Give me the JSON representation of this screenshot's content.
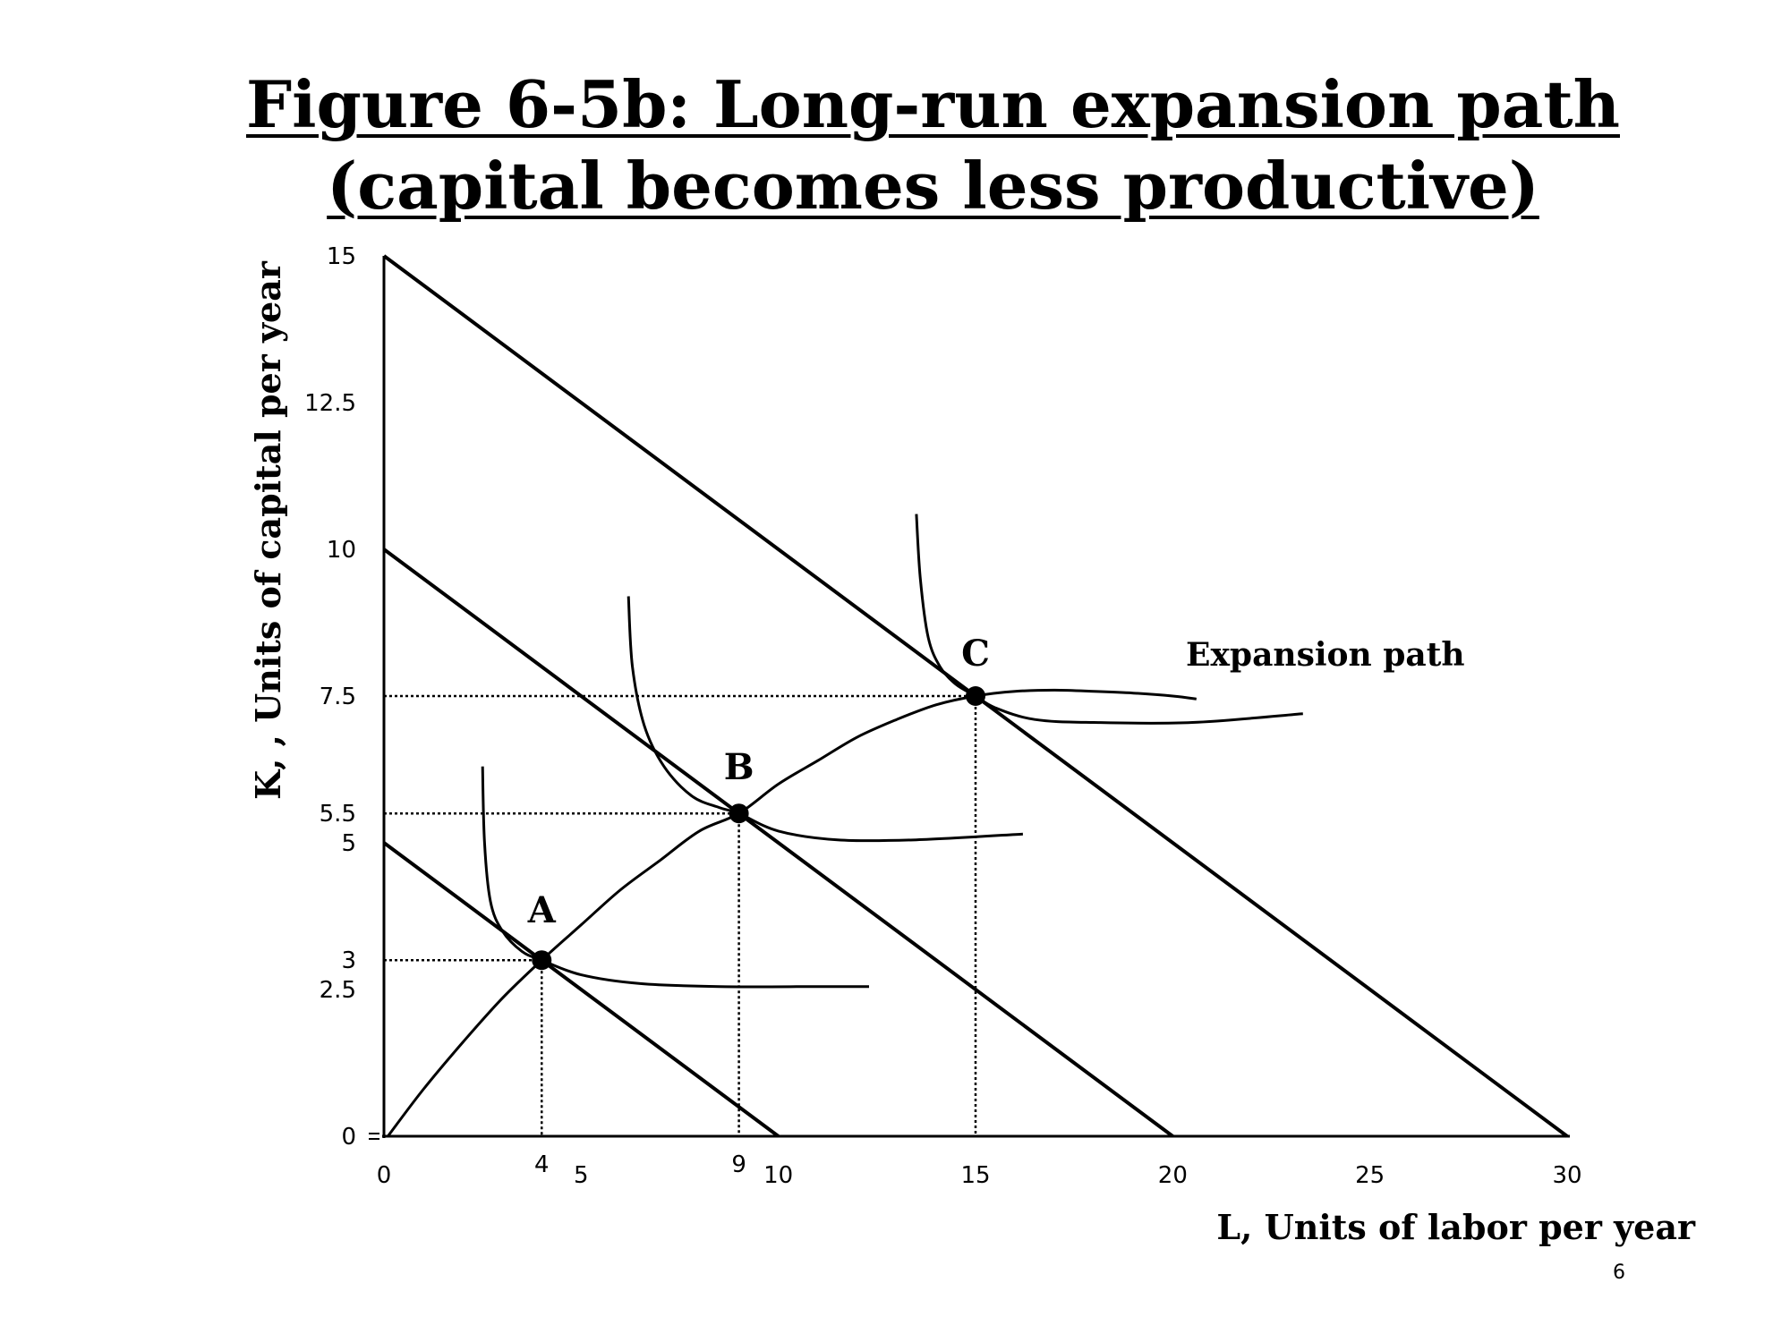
{
  "title": {
    "line1": "Figure 6-5b: Long-run expansion path",
    "line2": "(capital becomes less productive)"
  },
  "page_number": "6",
  "chart_data": {
    "type": "line",
    "title": "Figure 6-5b: Long-run expansion path (capital becomes less productive)",
    "xlabel": "L, Units of  labor per year",
    "ylabel": "K, , Units of  capital per year",
    "xlim": [
      0,
      30
    ],
    "ylim": [
      0,
      15
    ],
    "x_ticks": [
      "0",
      "4",
      "5",
      "9",
      "10",
      "15",
      "20",
      "25",
      "30"
    ],
    "y_ticks": [
      "0",
      "2.5",
      "3",
      "5",
      "5.5",
      "7.5",
      "10",
      "12.5",
      "15"
    ],
    "grid": false,
    "isocost_lines": [
      {
        "x": [
          0,
          10
        ],
        "y": [
          5,
          0
        ]
      },
      {
        "x": [
          0,
          20
        ],
        "y": [
          10,
          0
        ]
      },
      {
        "x": [
          0,
          30
        ],
        "y": [
          15,
          0
        ]
      }
    ],
    "isoquants": [
      {
        "x": [
          2.5,
          2.55,
          2.7,
          3.0,
          3.5,
          4.0,
          5.0,
          6.5,
          8.5,
          11.0,
          12.3
        ],
        "y": [
          6.3,
          5.0,
          4.0,
          3.5,
          3.15,
          3.0,
          2.75,
          2.6,
          2.55,
          2.55,
          2.55
        ]
      },
      {
        "x": [
          6.2,
          6.3,
          6.6,
          7.1,
          7.8,
          8.5,
          9.0,
          10.0,
          11.5,
          13.5,
          16.2
        ],
        "y": [
          9.2,
          8.0,
          7.0,
          6.3,
          5.8,
          5.6,
          5.5,
          5.2,
          5.05,
          5.05,
          5.15
        ]
      },
      {
        "x": [
          13.5,
          13.6,
          13.8,
          14.1,
          14.5,
          15.0,
          15.5,
          16.5,
          18.0,
          20.5,
          23.3
        ],
        "y": [
          10.6,
          9.5,
          8.5,
          8.0,
          7.7,
          7.5,
          7.3,
          7.1,
          7.05,
          7.05,
          7.2
        ]
      }
    ],
    "expansion_path": {
      "label": "Expansion path",
      "x": [
        0.1,
        1.0,
        2.0,
        3.0,
        4.0,
        5.0,
        6.0,
        7.0,
        8.0,
        9.0,
        10.0,
        11.0,
        12.0,
        13.0,
        14.0,
        15.0,
        16.0,
        17.0,
        18.0,
        19.0,
        20.0,
        20.6
      ],
      "y": [
        0.0,
        0.8,
        1.6,
        2.35,
        3.0,
        3.6,
        4.2,
        4.7,
        5.2,
        5.5,
        6.0,
        6.4,
        6.8,
        7.1,
        7.35,
        7.5,
        7.58,
        7.6,
        7.58,
        7.55,
        7.5,
        7.45
      ]
    },
    "points": [
      {
        "label": "A",
        "x": 4,
        "y": 3
      },
      {
        "label": "B",
        "x": 9,
        "y": 5.5
      },
      {
        "label": "C",
        "x": 15,
        "y": 7.5
      }
    ]
  }
}
